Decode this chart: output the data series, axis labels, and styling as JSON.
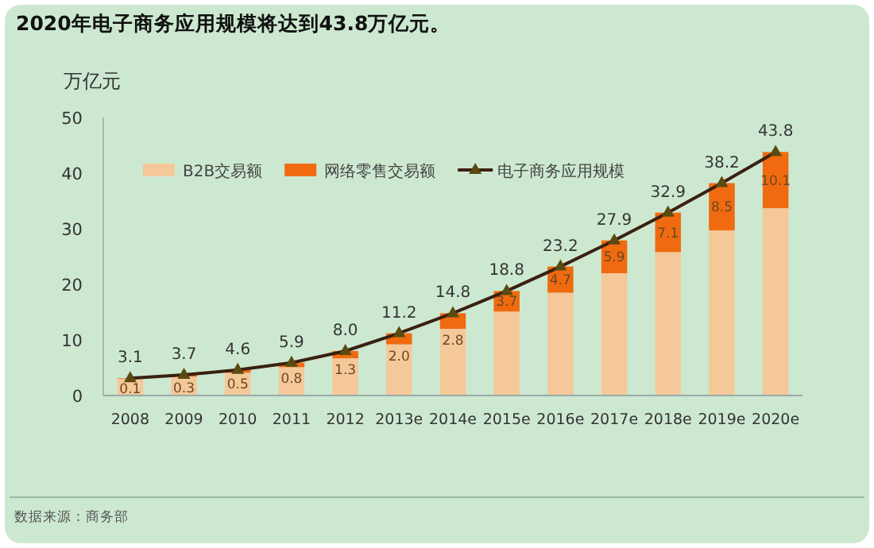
{
  "chart_data": {
    "type": "bar",
    "stacked": true,
    "title": "2020年电子商务应用规模将达到**43.8**万亿元。",
    "ylabel": "万亿元",
    "categories": [
      "2008",
      "2009",
      "2010",
      "2011",
      "2012",
      "2013e",
      "2014e",
      "2015e",
      "2016e",
      "2017e",
      "2018e",
      "2019e",
      "2020e"
    ],
    "series": [
      {
        "name": "B2B交易额",
        "color": "#f5c89a",
        "values": [
          3.0,
          3.4,
          4.1,
          5.1,
          6.7,
          9.2,
          12.0,
          15.1,
          18.5,
          22.0,
          25.8,
          29.7,
          33.7
        ]
      },
      {
        "name": "网络零售交易额",
        "color": "#f06a10",
        "values": [
          0.1,
          0.3,
          0.5,
          0.8,
          1.3,
          2.0,
          2.8,
          3.7,
          4.7,
          5.9,
          7.1,
          8.5,
          10.1
        ],
        "value_labels": [
          "0.1",
          "0.3",
          "0.5",
          "0.8",
          "1.3",
          "2.0",
          "2.8",
          "3.7",
          "4.7",
          "5.9",
          "7.1",
          "8.5",
          "10.1"
        ]
      },
      {
        "name": "电子商务应用规模",
        "type": "line",
        "color": "#3a2010",
        "marker": "triangle",
        "values": [
          3.1,
          3.7,
          4.6,
          5.9,
          8.0,
          11.2,
          14.8,
          18.8,
          23.2,
          27.9,
          32.9,
          38.2,
          43.8
        ],
        "value_labels": [
          "3.1",
          "3.7",
          "4.6",
          "5.9",
          "8.0",
          "11.2",
          "14.8",
          "18.8",
          "23.2",
          "27.9",
          "32.9",
          "38.2",
          "43.8"
        ]
      }
    ],
    "ylim": [
      0,
      50
    ],
    "yticks": [
      0,
      10,
      20,
      30,
      40,
      50
    ],
    "grid": false,
    "legend": "top left",
    "annotations": [
      "数据来源：商务部"
    ]
  }
}
